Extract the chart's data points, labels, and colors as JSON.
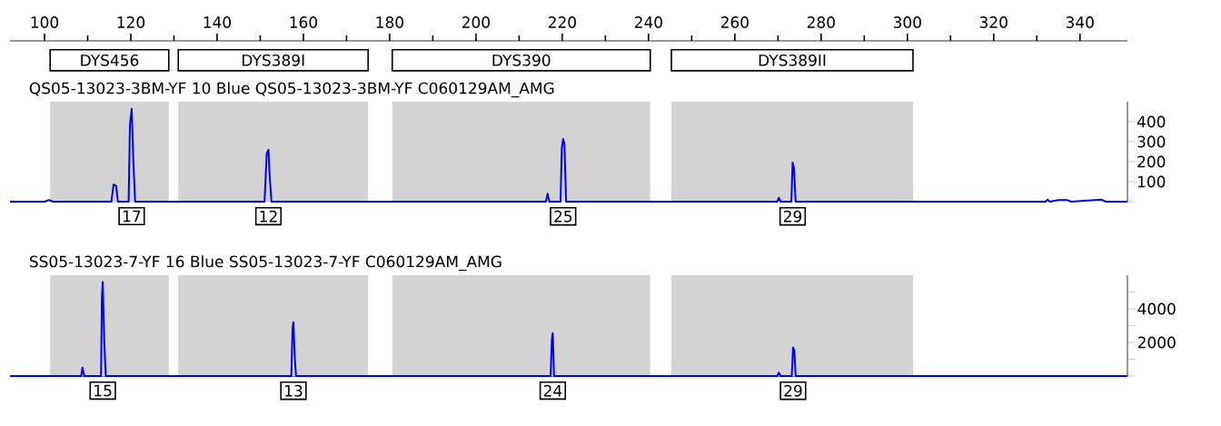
{
  "chart_data": [
    {
      "type": "line",
      "title": "QS05-13023-3BM-YF  10 Blue    QS05-13023-3BM-YF C060129AM_AMG",
      "xlim": [
        92,
        351
      ],
      "xticks": [
        100,
        120,
        140,
        160,
        180,
        200,
        220,
        240,
        260,
        280,
        300,
        320,
        340
      ],
      "ylim": [
        0,
        500
      ],
      "yticks": [
        {
          "value": 0,
          "label": null
        },
        100,
        200,
        300,
        400
      ],
      "bands": [
        {
          "axis": "x",
          "from": 101.3,
          "to": 128.8,
          "label": "DYS456",
          "color": "#d3d3d3"
        },
        {
          "axis": "x",
          "from": 131,
          "to": 175,
          "label": "DYS389I",
          "color": "#d3d3d3"
        },
        {
          "axis": "x",
          "from": 180.6,
          "to": 240.4,
          "label": "DYS390",
          "color": "#d3d3d3"
        },
        {
          "axis": "x",
          "from": 245.3,
          "to": 301.3,
          "label": "DYS389II",
          "color": "#d3d3d3"
        }
      ],
      "series": [
        {
          "color": "#0000ff",
          "x": [
            92,
            100,
            101,
            102,
            115.5,
            116.0,
            116.6,
            117,
            119.5,
            119.8,
            120.2,
            120.6,
            121,
            151,
            151.5,
            151.9,
            152.2,
            152.6,
            216.2,
            216.6,
            217,
            219.6,
            219.9,
            220.2,
            220.5,
            220.9,
            269.8,
            270.2,
            270.6,
            273.1,
            273.4,
            273.7,
            274.1,
            332,
            332.5,
            333,
            335,
            337,
            338,
            345,
            346,
            351
          ],
          "values": [
            0,
            0,
            8,
            0,
            0,
            85,
            80,
            0,
            0,
            385,
            465,
            200,
            0,
            0,
            240,
            259,
            123,
            0,
            0,
            40,
            0,
            0,
            268,
            314,
            290,
            0,
            0,
            20,
            0,
            0,
            195,
            170,
            0,
            0,
            10,
            0,
            8,
            8,
            0,
            10,
            0,
            0
          ]
        }
      ],
      "annotations": [
        {
          "text": "17",
          "x": 120.2,
          "y": 0
        },
        {
          "text": "12",
          "x": 151.9,
          "y": 0
        },
        {
          "text": "25",
          "x": 220.2,
          "y": 0
        },
        {
          "text": "29",
          "x": 273.4,
          "y": 0
        }
      ]
    },
    {
      "type": "line",
      "title": "SS05-13023-7-YF    16 Blue    SS05-13023-7-YF C060129AM_AMG",
      "xlim": [
        92,
        351
      ],
      "ylim": [
        0,
        6000
      ],
      "yticks": [
        {
          "value": 0,
          "label": null
        },
        {
          "value": 1000,
          "label": null
        },
        2000,
        {
          "value": 3000,
          "label": null
        },
        4000,
        {
          "value": 5000,
          "label": null
        }
      ],
      "tick_labels": "y",
      "bands": [
        {
          "axis": "x",
          "from": 101.3,
          "to": 128.8,
          "color": "#d3d3d3"
        },
        {
          "axis": "x",
          "from": 131,
          "to": 175,
          "color": "#d3d3d3"
        },
        {
          "axis": "x",
          "from": 180.6,
          "to": 240.4,
          "color": "#d3d3d3"
        },
        {
          "axis": "x",
          "from": 245.3,
          "to": 301.3,
          "color": "#d3d3d3"
        }
      ],
      "series": [
        {
          "color": "#0000ff",
          "x": [
            92,
            108.5,
            108.8,
            109.2,
            113.1,
            113.3,
            113.5,
            113.8,
            114.2,
            157.2,
            157.5,
            157.7,
            158,
            158.3,
            217.3,
            217.6,
            217.8,
            218.1,
            269.8,
            270.2,
            270.6,
            273.2,
            273.5,
            273.8,
            274.1,
            351
          ],
          "values": [
            0,
            0,
            500,
            0,
            0,
            4700,
            5600,
            2400,
            0,
            0,
            2900,
            3200,
            1100,
            0,
            0,
            2200,
            2550,
            0,
            0,
            200,
            0,
            0,
            1700,
            1500,
            0,
            0
          ]
        }
      ],
      "annotations": [
        {
          "text": "15",
          "x": 113.5,
          "y": 0
        },
        {
          "text": "13",
          "x": 157.7,
          "y": 0
        },
        {
          "text": "24",
          "x": 217.8,
          "y": 0
        },
        {
          "text": "29",
          "x": 273.5,
          "y": 0
        }
      ]
    }
  ]
}
